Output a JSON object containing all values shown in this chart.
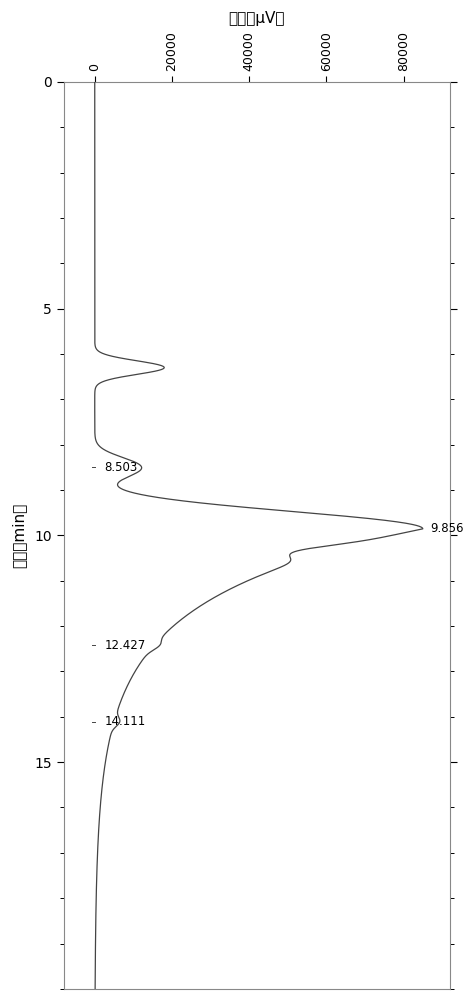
{
  "title": "电压（μV）",
  "ylabel": "时间（min）",
  "xlim": [
    -8000,
    92000
  ],
  "ylim": [
    0,
    20
  ],
  "xticks": [
    0,
    20000,
    40000,
    60000,
    80000
  ],
  "yticks": [
    0,
    5,
    10,
    15
  ],
  "background_color": "#ffffff",
  "line_color": "#444444",
  "fig_width": 4.76,
  "fig_height": 10.0,
  "dpi": 100
}
